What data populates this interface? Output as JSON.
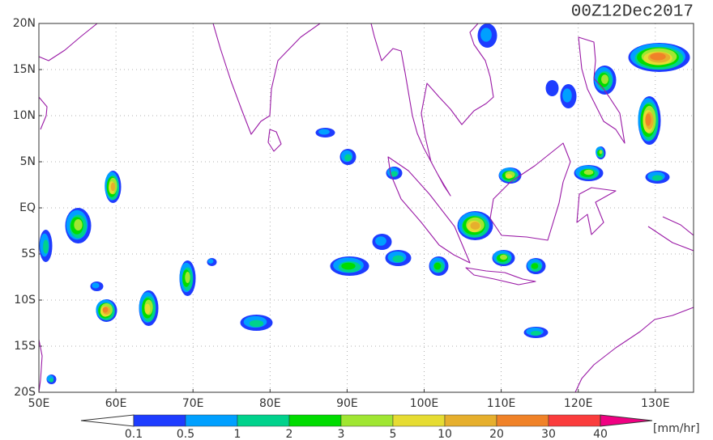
{
  "title": "00Z12Dec2017",
  "lat_labels": [
    "20N",
    "15N",
    "10N",
    "5N",
    "EQ",
    "5S",
    "10S",
    "15S",
    "20S"
  ],
  "lon_labels": [
    "50E",
    "60E",
    "70E",
    "80E",
    "90E",
    "100E",
    "110E",
    "120E",
    "130E"
  ],
  "colorbar": {
    "labels": [
      0.1,
      0.5,
      1,
      2,
      3,
      5,
      10,
      20,
      30,
      40
    ],
    "colors": [
      "#ffffff",
      "#1e3cff",
      "#00a0ff",
      "#00d28c",
      "#00dc00",
      "#a0e632",
      "#e6dc32",
      "#e6af2d",
      "#f08228",
      "#fa3c3c",
      "#f00082"
    ],
    "unit": "[mm/hr]"
  }
}
